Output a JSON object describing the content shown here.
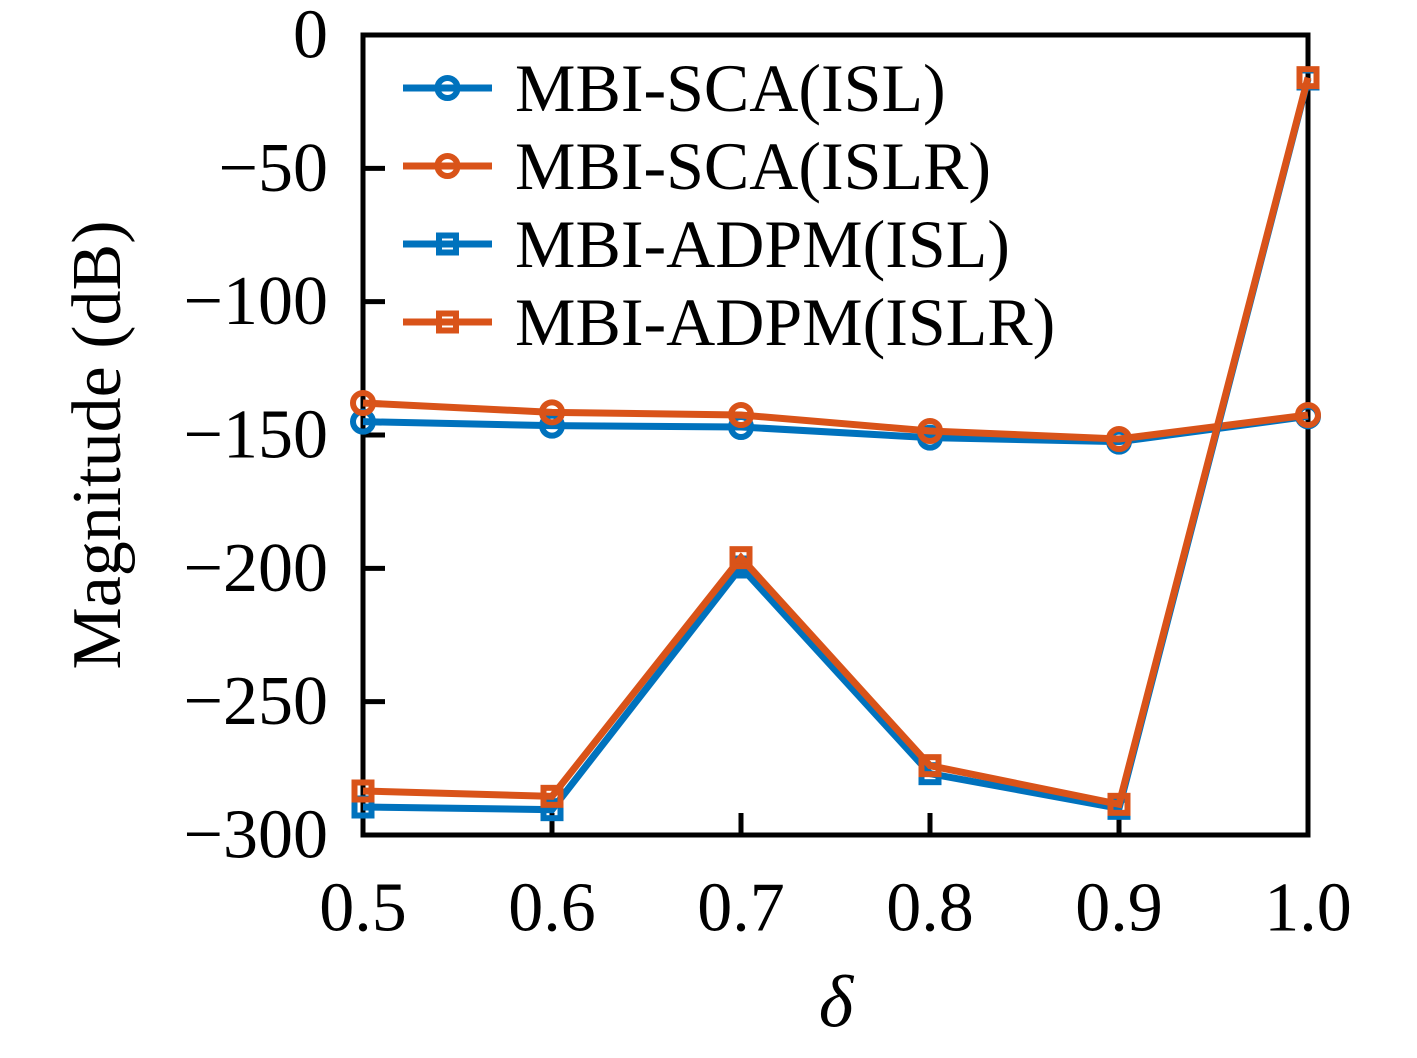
{
  "chart_data": {
    "type": "line",
    "title": "",
    "xlabel": "δ",
    "ylabel": "Magnitude (dB)",
    "xlim": [
      0.5,
      1.0
    ],
    "ylim": [
      -300,
      0
    ],
    "grid": false,
    "legend_position": "upper-left-inside",
    "legend_frame": false,
    "x": [
      0.5,
      0.6,
      0.7,
      0.8,
      0.9,
      1.0
    ],
    "xtick_labels": [
      "0.5",
      "0.6",
      "0.7",
      "0.8",
      "0.9",
      "1.0"
    ],
    "yticks": [
      0,
      -50,
      -100,
      -150,
      -200,
      -250,
      -300
    ],
    "ytick_labels": [
      "0",
      "−50",
      "−100",
      "−150",
      "−200",
      "−250",
      "−300"
    ],
    "series": [
      {
        "name": "MBI-SCA(ISL)",
        "color": "#0072BD",
        "marker": "circle",
        "values": [
          -145,
          -146.5,
          -147,
          -151,
          -152.5,
          -143
        ]
      },
      {
        "name": "MBI-SCA(ISLR)",
        "color": "#D95319",
        "marker": "circle",
        "values": [
          -138,
          -141.5,
          -142.5,
          -148.5,
          -151.5,
          -142.5
        ]
      },
      {
        "name": "MBI-ADPM(ISL)",
        "color": "#0072BD",
        "marker": "square",
        "values": [
          -289.5,
          -290.5,
          -199.5,
          -277,
          -290,
          -16.5
        ]
      },
      {
        "name": "MBI-ADPM(ISLR)",
        "color": "#D95319",
        "marker": "square",
        "values": [
          -283.5,
          -285.5,
          -196,
          -274,
          -288.5,
          -16
        ]
      }
    ],
    "colors": {
      "axis": "#000000",
      "text": "#000000",
      "background": "#ffffff"
    }
  }
}
